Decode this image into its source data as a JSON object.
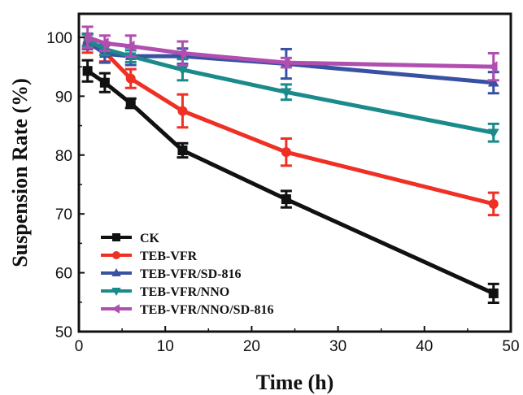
{
  "chart_data": {
    "type": "line",
    "title": "",
    "xlabel": "Time (h)",
    "ylabel": "Suspension Rate (%)",
    "xlim": [
      0,
      50
    ],
    "ylim": [
      50,
      104
    ],
    "xticks": [
      0,
      10,
      20,
      30,
      40,
      50
    ],
    "yticks": [
      50,
      60,
      70,
      80,
      90,
      100
    ],
    "grid": false,
    "legend_position": "bottom-left",
    "x": [
      1,
      3,
      6,
      12,
      24,
      48
    ],
    "series": [
      {
        "name": "CK",
        "color": "#111111",
        "marker": "square",
        "values": [
          94.3,
          92.3,
          88.8,
          80.8,
          72.5,
          56.5
        ],
        "errors": [
          1.8,
          1.6,
          0.8,
          1.2,
          1.4,
          1.6
        ]
      },
      {
        "name": "TEB-VFR",
        "color": "#ee3124",
        "marker": "circle",
        "values": [
          99.0,
          97.5,
          93.0,
          87.5,
          80.5,
          71.7
        ],
        "errors": [
          1.6,
          1.6,
          1.6,
          2.8,
          2.3,
          1.9
        ]
      },
      {
        "name": "TEB-VFR/SD-816",
        "color": "#3951a2",
        "marker": "triangle-up",
        "values": [
          99.3,
          97.2,
          96.8,
          96.8,
          95.5,
          92.3
        ],
        "errors": [
          1.3,
          1.5,
          1.5,
          1.3,
          2.5,
          1.8
        ]
      },
      {
        "name": "TEB-VFR/NNO",
        "color": "#1a8a8a",
        "marker": "triangle-down",
        "values": [
          99.5,
          98.0,
          96.8,
          94.5,
          90.7,
          83.8
        ],
        "errors": [
          1.0,
          1.0,
          1.0,
          1.8,
          1.3,
          1.5
        ]
      },
      {
        "name": "TEB-VFR/NNO/SD-816",
        "color": "#b04fb0",
        "marker": "triangle-left",
        "values": [
          100.0,
          99.0,
          98.5,
          97.3,
          95.7,
          95.0
        ],
        "errors": [
          1.8,
          1.3,
          1.8,
          2.0,
          0.8,
          2.3
        ]
      }
    ]
  }
}
